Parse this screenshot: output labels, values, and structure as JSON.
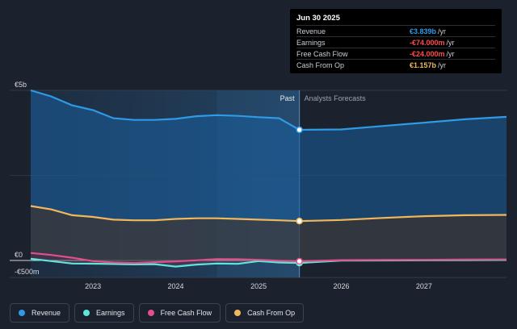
{
  "chart_data": {
    "type": "area",
    "y_ticks": [
      {
        "label": "€5b",
        "value": 5000
      },
      {
        "label": "€0",
        "value": 0
      },
      {
        "label": "-€500m",
        "value": -500
      }
    ],
    "x_ticks": [
      "2023",
      "2024",
      "2025",
      "2026",
      "2027"
    ],
    "divider": {
      "date": "2025-06-30",
      "left_label": "Past",
      "right_label": "Analysts Forecasts"
    },
    "series": [
      {
        "name": "Revenue",
        "color": "#2f9ae6",
        "points": [
          [
            "2022-04-01",
            5000
          ],
          [
            "2022-07-01",
            4820
          ],
          [
            "2022-10-01",
            4560
          ],
          [
            "2023-01-01",
            4420
          ],
          [
            "2023-04-01",
            4180
          ],
          [
            "2023-07-01",
            4130
          ],
          [
            "2023-10-01",
            4130
          ],
          [
            "2024-01-01",
            4160
          ],
          [
            "2024-04-01",
            4240
          ],
          [
            "2024-07-01",
            4270
          ],
          [
            "2024-10-01",
            4250
          ],
          [
            "2025-01-01",
            4210
          ],
          [
            "2025-04-01",
            4180
          ],
          [
            "2025-06-30",
            3839
          ],
          [
            "2026-01-01",
            3850
          ],
          [
            "2026-07-01",
            3950
          ],
          [
            "2027-01-01",
            4050
          ],
          [
            "2027-07-01",
            4150
          ],
          [
            "2027-12-31",
            4220
          ]
        ]
      },
      {
        "name": "Earnings",
        "color": "#5ee6dc",
        "points": [
          [
            "2022-04-01",
            50
          ],
          [
            "2022-07-01",
            -20
          ],
          [
            "2022-10-01",
            -90
          ],
          [
            "2023-01-01",
            -95
          ],
          [
            "2023-04-01",
            -105
          ],
          [
            "2023-07-01",
            -115
          ],
          [
            "2023-10-01",
            -110
          ],
          [
            "2024-01-01",
            -180
          ],
          [
            "2024-04-01",
            -120
          ],
          [
            "2024-07-01",
            -90
          ],
          [
            "2024-10-01",
            -100
          ],
          [
            "2025-01-01",
            -20
          ],
          [
            "2025-04-01",
            -60
          ],
          [
            "2025-06-30",
            -74
          ],
          [
            "2026-01-01",
            -5
          ],
          [
            "2026-07-01",
            0
          ],
          [
            "2027-01-01",
            5
          ],
          [
            "2027-07-01",
            10
          ],
          [
            "2027-12-31",
            15
          ]
        ]
      },
      {
        "name": "Free Cash Flow",
        "color": "#e0508a",
        "points": [
          [
            "2022-04-01",
            220
          ],
          [
            "2022-07-01",
            160
          ],
          [
            "2022-10-01",
            80
          ],
          [
            "2023-01-01",
            -20
          ],
          [
            "2023-04-01",
            -60
          ],
          [
            "2023-07-01",
            -75
          ],
          [
            "2023-10-01",
            -50
          ],
          [
            "2024-01-01",
            -25
          ],
          [
            "2024-04-01",
            5
          ],
          [
            "2024-07-01",
            40
          ],
          [
            "2024-10-01",
            35
          ],
          [
            "2025-01-01",
            20
          ],
          [
            "2025-04-01",
            -10
          ],
          [
            "2025-06-30",
            -24
          ],
          [
            "2026-01-01",
            10
          ],
          [
            "2026-07-01",
            15
          ],
          [
            "2027-01-01",
            20
          ],
          [
            "2027-07-01",
            25
          ],
          [
            "2027-12-31",
            30
          ]
        ]
      },
      {
        "name": "Cash From Op",
        "color": "#f0b85c",
        "points": [
          [
            "2022-04-01",
            1600
          ],
          [
            "2022-07-01",
            1500
          ],
          [
            "2022-10-01",
            1330
          ],
          [
            "2023-01-01",
            1280
          ],
          [
            "2023-04-01",
            1200
          ],
          [
            "2023-07-01",
            1180
          ],
          [
            "2023-10-01",
            1180
          ],
          [
            "2024-01-01",
            1220
          ],
          [
            "2024-04-01",
            1240
          ],
          [
            "2024-07-01",
            1240
          ],
          [
            "2024-10-01",
            1220
          ],
          [
            "2025-01-01",
            1200
          ],
          [
            "2025-04-01",
            1180
          ],
          [
            "2025-06-30",
            1157
          ],
          [
            "2026-01-01",
            1190
          ],
          [
            "2026-07-01",
            1250
          ],
          [
            "2027-01-01",
            1300
          ],
          [
            "2027-07-01",
            1330
          ],
          [
            "2027-12-31",
            1340
          ]
        ]
      }
    ],
    "ylim": [
      -500,
      5000
    ],
    "xlim": [
      "2022-04-01",
      "2027-12-31"
    ],
    "legend_position": "bottom-left"
  },
  "tooltip": {
    "date": "Jun 30 2025",
    "rows": [
      {
        "label": "Revenue",
        "value": "€3.839b",
        "unit": "/yr",
        "color": "#2f9ae6"
      },
      {
        "label": "Earnings",
        "value": "-€74.000m",
        "unit": "/yr",
        "color": "#ff4d4d"
      },
      {
        "label": "Free Cash Flow",
        "value": "-€24.000m",
        "unit": "/yr",
        "color": "#ff4d4d"
      },
      {
        "label": "Cash From Op",
        "value": "€1.157b",
        "unit": "/yr",
        "color": "#f0b85c"
      }
    ]
  },
  "legend": [
    {
      "label": "Revenue",
      "color": "#2f9ae6"
    },
    {
      "label": "Earnings",
      "color": "#5ee6dc"
    },
    {
      "label": "Free Cash Flow",
      "color": "#e0508a"
    },
    {
      "label": "Cash From Op",
      "color": "#f0b85c"
    }
  ]
}
